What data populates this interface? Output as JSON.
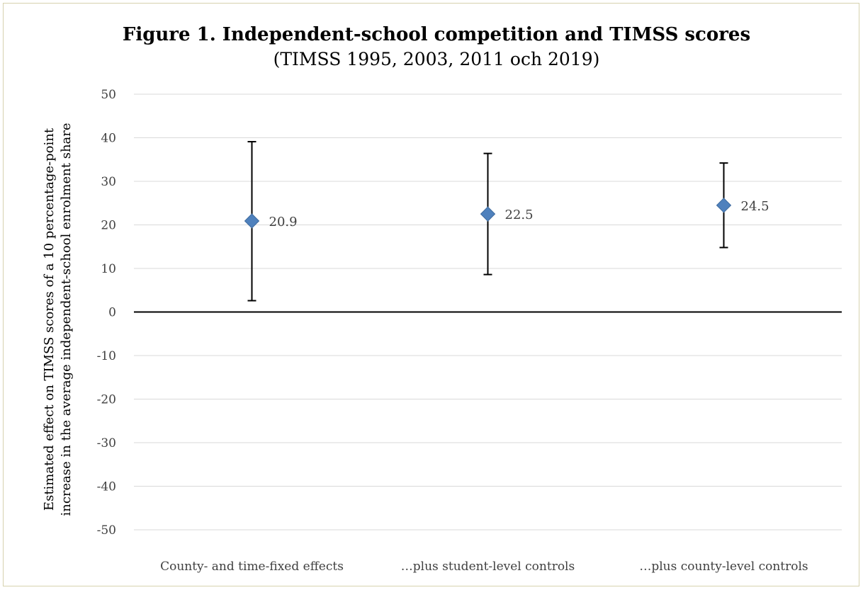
{
  "chart_data": {
    "type": "scatter",
    "title": "Figure 1. Independent-school competition and TIMSS scores",
    "subtitle": "(TIMSS 1995, 2003, 2011 och 2019)",
    "ylabel_line1": "Estimated effect on TIMSS scores of a 10 percentage-point",
    "ylabel_line2": "increase in the average independent-school enrolment share",
    "xlabel": "",
    "ylim": [
      -50,
      50
    ],
    "ytick_step": 10,
    "yticks": [
      "50",
      "40",
      "30",
      "20",
      "10",
      "0",
      "-10",
      "-20",
      "-30",
      "-40",
      "-50"
    ],
    "grid": true,
    "legend": "none",
    "categories": [
      "County- and time-fixed effects",
      "…plus student-level controls",
      "…plus county-level controls"
    ],
    "values": [
      20.9,
      22.5,
      24.5
    ],
    "value_labels": [
      "20.9",
      "22.5",
      "24.5"
    ],
    "error_low": [
      2.6,
      8.6,
      14.8
    ],
    "error_high": [
      39.1,
      36.4,
      34.2
    ],
    "colors": {
      "marker": "#4f81bd",
      "marker_edge": "#3d6a9e",
      "error_bar": "#000000",
      "gridline": "#d9d9d9",
      "zero_line": "#000000"
    }
  }
}
